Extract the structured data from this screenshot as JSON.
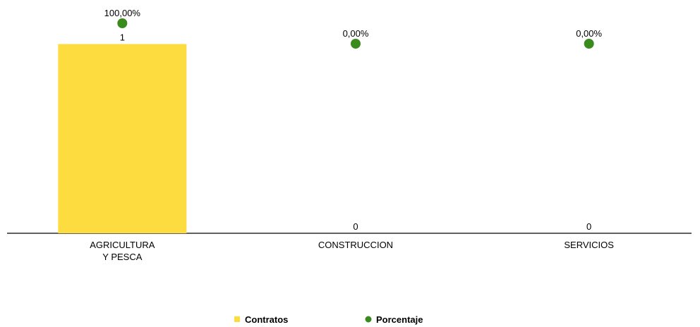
{
  "chart_data": {
    "type": "bar",
    "categories": [
      "AGRICULTURA\nY PESCA",
      "CONSTRUCCION",
      "SERVICIOS"
    ],
    "series": [
      {
        "name": "Contratos",
        "type": "bar",
        "color": "#fddc3f",
        "values": [
          1,
          0,
          0
        ]
      },
      {
        "name": "Porcentaje",
        "type": "scatter",
        "axis": "y2",
        "color": "#3a8a1e",
        "values": [
          100,
          0,
          0
        ],
        "value_labels": [
          "100,00%",
          "0,00%",
          "0,00%"
        ]
      }
    ],
    "ylim": [
      0,
      1.11
    ],
    "y2lim": [
      -928,
      100
    ],
    "legend": "bottom"
  }
}
